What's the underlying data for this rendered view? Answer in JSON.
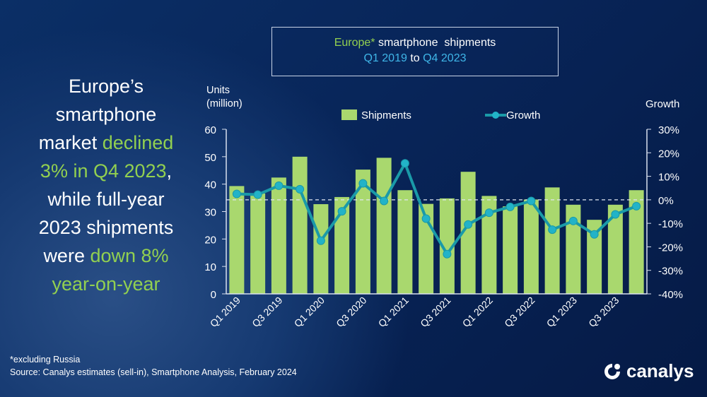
{
  "headline": {
    "lines": [
      [
        {
          "t": "Europe’s",
          "c": "white"
        }
      ],
      [
        {
          "t": "smartphone",
          "c": "white"
        }
      ],
      [
        {
          "t": "market ",
          "c": "white"
        },
        {
          "t": "declined",
          "c": "green"
        }
      ],
      [
        {
          "t": "3% in Q4 2023",
          "c": "green"
        },
        {
          "t": ",",
          "c": "white"
        }
      ],
      [
        {
          "t": "while full-year",
          "c": "white"
        }
      ],
      [
        {
          "t": "2023 shipments",
          "c": "white"
        }
      ],
      [
        {
          "t": "were ",
          "c": "white"
        },
        {
          "t": "down 8%",
          "c": "green"
        }
      ],
      [
        {
          "t": "year-on-year",
          "c": "green"
        }
      ]
    ]
  },
  "title_box": {
    "line1_a": "Europe*",
    "line1_b": " smartphone  shipments",
    "line2_a": "Q1 2019",
    "line2_b": " to ",
    "line2_c": "Q4 2023"
  },
  "footnote": "*excluding Russia",
  "source": "Source:  Canalys estimates (sell-in), Smartphone Analysis, February 2024",
  "logo": "canalys",
  "colors": {
    "bars": "#a9d86e",
    "line": "#1a9aa8",
    "marker": "#22b3c8",
    "green_text": "#92d050",
    "cyan_text": "#3fb6e8"
  },
  "chart_data": {
    "type": "bar+line",
    "title": "Europe* smartphone shipments Q1 2019 to Q4 2023",
    "ylabel": "Units (million)",
    "y2label": "Growth",
    "ylim": [
      0,
      60
    ],
    "y2lim": [
      -40,
      30
    ],
    "yticks": [
      "0",
      "10",
      "20",
      "30",
      "40",
      "50",
      "60"
    ],
    "y2ticks": [
      "-40%",
      "-30%",
      "-20%",
      "-10%",
      "0%",
      "10%",
      "20%",
      "30%"
    ],
    "legend": "top",
    "categories": [
      "Q1 2019",
      "Q2 2019",
      "Q3 2019",
      "Q4 2019",
      "Q1 2020",
      "Q2 2020",
      "Q3 2020",
      "Q4 2020",
      "Q1 2021",
      "Q2 2021",
      "Q3 2021",
      "Q4 2021",
      "Q1 2022",
      "Q2 2022",
      "Q3 2022",
      "Q4 2022",
      "Q1 2023",
      "Q2 2023",
      "Q3 2023",
      "Q4 2023"
    ],
    "xtick_labels": [
      "Q1 2019",
      "",
      "Q3 2019",
      "",
      "Q1 2020",
      "",
      "Q3 2020",
      "",
      "Q1 2021",
      "",
      "Q3 2021",
      "",
      "Q1 2022",
      "",
      "Q3 2022",
      "",
      "Q1 2023",
      "",
      "Q3 2023",
      ""
    ],
    "series": [
      {
        "name": "Shipments",
        "type": "bar",
        "axis": "left",
        "values": [
          39.3,
          36.6,
          42.4,
          50.0,
          32.7,
          35.3,
          45.3,
          49.6,
          37.8,
          32.8,
          34.8,
          44.5,
          35.7,
          31.9,
          34.4,
          38.8,
          32.5,
          27.0,
          32.5,
          37.8
        ]
      },
      {
        "name": "Growth",
        "type": "line",
        "axis": "right",
        "unit": "%",
        "values": [
          2.5,
          2.2,
          6.0,
          4.5,
          -17.4,
          -4.9,
          7.0,
          -0.5,
          15.5,
          -8.0,
          -23.1,
          -10.5,
          -5.5,
          -3.0,
          -0.5,
          -12.7,
          -9.0,
          -14.7,
          -6.2,
          -2.7
        ]
      }
    ]
  }
}
